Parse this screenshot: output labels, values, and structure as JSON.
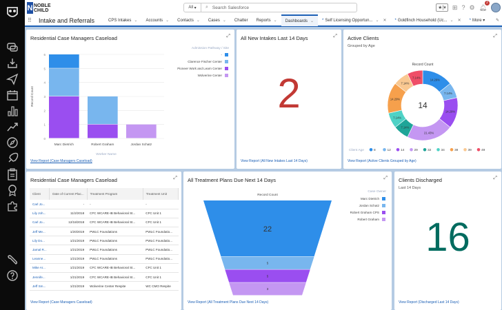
{
  "app": {
    "brand_line1": "NOBLE",
    "brand_line2": "CHILD",
    "app_name": "Intake and Referrals"
  },
  "header": {
    "search_scope": "All",
    "search_placeholder": "Search Salesforce",
    "notification_count": "2"
  },
  "nav": {
    "tabs": [
      {
        "label": "CPS Intakes",
        "has_menu": true
      },
      {
        "label": "Accounts",
        "has_menu": true
      },
      {
        "label": "Contacts",
        "has_menu": true
      },
      {
        "label": "Cases",
        "has_menu": true
      },
      {
        "label": "Chatter",
        "has_menu": false
      },
      {
        "label": "Reports",
        "has_menu": true
      },
      {
        "label": "Dashboards",
        "has_menu": true,
        "active": true
      },
      {
        "label": "Self Licensing Opportun...",
        "has_menu": true,
        "closable": true
      },
      {
        "label": "Goldfinch Household (Uc...",
        "has_menu": true,
        "closable": true
      }
    ],
    "more_label": "More"
  },
  "colors": {
    "blue": "#2e8ee9",
    "light_blue": "#78b6ee",
    "purple": "#9a4ef0",
    "light_purple": "#c497f2",
    "teal_dark": "#1fa598",
    "teal": "#4fd2c6",
    "orange": "#f6a04c",
    "peach": "#f9c891",
    "red": "#ef4e67",
    "intake_num": "#c23934",
    "discharged_num": "#006b5f",
    "link": "#1b5fb5"
  },
  "caseload_chart": {
    "title": "Residential Case Managers Caseload",
    "link": "View Report (Case Managers Caseload)",
    "chart_data": {
      "type": "bar",
      "stacked": true,
      "title": "Residential Case Managers Caseload",
      "xlabel": "Worker Name",
      "ylabel": "Record Count",
      "ylim": [
        0,
        6
      ],
      "yticks": [
        0,
        1,
        2,
        3,
        4,
        5,
        6
      ],
      "legend_title": "Admission Pathway / Site",
      "legend_position": "top-right",
      "categories": [
        "Marc Dietrich",
        "Robert Graham",
        "Jordan Schatz"
      ],
      "series": [
        {
          "name": "Pioneer Work and Learn Center",
          "color": "#9a4ef0",
          "values": [
            3,
            1,
            0
          ]
        },
        {
          "name": "Clarence Fischer Center",
          "color": "#78b6ee",
          "values": [
            2,
            2,
            0
          ]
        },
        {
          "name": "-",
          "color": "#2e8ee9",
          "values": [
            1,
            0,
            0
          ]
        },
        {
          "name": "Wolverine Center",
          "color": "#c497f2",
          "values": [
            0,
            0,
            1
          ]
        }
      ],
      "legend_order": [
        "-",
        "Clarence Fischer Center",
        "Pioneer Work and Learn Center",
        "Wolverine Center"
      ]
    }
  },
  "intakes": {
    "title": "All New Intakes Last 14 Days",
    "value": "2",
    "link": "View Report (All New Intakes Last 14 Days)"
  },
  "active_clients": {
    "title": "Active Clients",
    "subtitle": "Grouped by Age",
    "link": "View Report (Active Clients Grouped by Age)",
    "chart_data": {
      "type": "pie",
      "donut": true,
      "title": "Record Count",
      "center_label": "14",
      "legend_title": "Client Age",
      "legend_position": "bottom",
      "categories": [
        "8",
        "12",
        "14",
        "29",
        "32",
        "34",
        "38",
        "39",
        "49"
      ],
      "values": [
        2,
        1,
        2,
        3,
        1,
        1,
        2,
        1,
        1
      ],
      "labels": [
        "14.29%",
        "7.14%",
        "14.29%",
        "21.43%",
        "7.14%",
        "7.14%",
        "14.29%",
        "7.14%",
        "7.14%"
      ],
      "colors": [
        "#2e8ee9",
        "#78b6ee",
        "#9a4ef0",
        "#c497f2",
        "#1fa598",
        "#4fd2c6",
        "#f6a04c",
        "#f9c891",
        "#ef4e67"
      ]
    }
  },
  "caseload_table": {
    "title": "Residential Case Managers Caseload",
    "link": "View Report (Case Managers Caseload)",
    "columns": [
      "Client",
      "Date of Current Plac...",
      "Treatment Program",
      "Treatment Unit"
    ],
    "rows": [
      [
        "Carl Jo...",
        "-",
        "-",
        "-"
      ],
      [
        "Lily Joh...",
        "11/2/2018",
        "CFC WCARE-IB Behavioral St...",
        "CFC Unit 1"
      ],
      [
        "Carl Jo...",
        "12/18/2018",
        "CFC WCARE-IB Behavioral St...",
        "CFC Unit 1"
      ],
      [
        "Jeff Me...",
        "1/20/2019",
        "PWLC Foundations",
        "PWLC Foundatio..."
      ],
      [
        "Lily Do...",
        "1/21/2019",
        "PWLC Foundations",
        "PWLC Foundatio..."
      ],
      [
        "Jamal R...",
        "1/21/2019",
        "PWLC Foundations",
        "PWLC Foundatio..."
      ],
      [
        "Leanne...",
        "1/21/2019",
        "PWLC Foundations",
        "PWLC Foundatio..."
      ],
      [
        "Mike Ar...",
        "1/21/2019",
        "CFC WCARE-IB Behavioral St...",
        "CFC Unit 1"
      ],
      [
        "Jennife...",
        "1/21/2019",
        "CFC WCARE-IB Behavioral St...",
        "CFC Unit 1"
      ],
      [
        "Jeff Sm...",
        "1/21/2019",
        "Wolverine Center Respite",
        "WC CMO Respite"
      ]
    ]
  },
  "treatment_plans": {
    "title": "All Treatment Plans Due Next 14 Days",
    "link": "View Report (All Treatment Plans Due Next 14 Days)",
    "chart_data": {
      "type": "funnel",
      "title": "Record Count",
      "legend_title": "Case Owner",
      "legend_position": "top-right",
      "categories": [
        "Marc Dietrich",
        "Jordan Schatz",
        "Robert Graham CPS",
        "Robert Graham"
      ],
      "values": [
        22,
        5,
        5,
        3
      ],
      "colors": [
        "#2e8ee9",
        "#78b6ee",
        "#9a4ef0",
        "#c497f2"
      ]
    }
  },
  "discharged": {
    "title": "Clients Discharged",
    "subtitle": "Last 14 Days",
    "value": "16",
    "link": "View Report (Discharged Last 14 Days)"
  }
}
